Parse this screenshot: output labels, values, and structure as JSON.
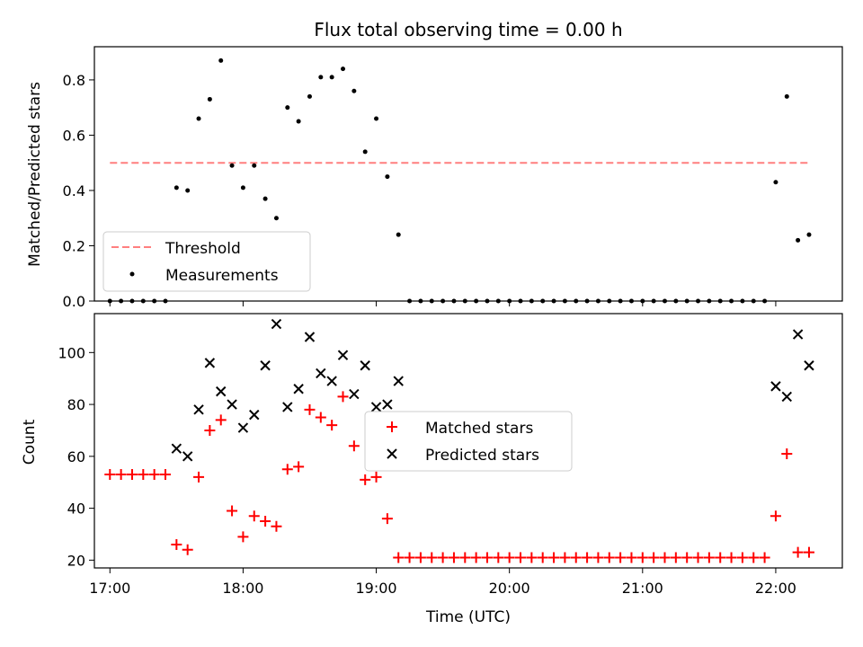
{
  "figure": {
    "title": "Flux total observing time = 0.00 h",
    "xlabel": "Time (UTC)"
  },
  "colors": {
    "threshold": "#ff7f7f",
    "measurements": "#000000",
    "matched": "#ff0000",
    "predicted": "#000000"
  },
  "chart_data": [
    {
      "type": "scatter",
      "title": "Flux total observing time = 0.00 h",
      "xlabel": "",
      "ylabel": "Matched/Predicted stars",
      "xlim": [
        "16:53",
        "22:30"
      ],
      "ylim": [
        0,
        0.92
      ],
      "xticks": [
        "17:00",
        "18:00",
        "19:00",
        "20:00",
        "21:00",
        "22:00"
      ],
      "yticks": [
        0.0,
        0.2,
        0.4,
        0.6,
        0.8
      ],
      "ytick_labels": [
        "0.0",
        "0.2",
        "0.4",
        "0.6",
        "0.8"
      ],
      "legend": {
        "placement": "lower-left",
        "entries": [
          "Threshold",
          "Measurements"
        ]
      },
      "threshold": {
        "name": "Threshold",
        "value": 0.5,
        "x": [
          "17:00",
          "22:15"
        ]
      },
      "series": [
        {
          "name": "Measurements",
          "marker": "dot",
          "points": [
            [
              "17:00",
              0
            ],
            [
              "17:05",
              0
            ],
            [
              "17:10",
              0
            ],
            [
              "17:15",
              0
            ],
            [
              "17:20",
              0
            ],
            [
              "17:25",
              0
            ],
            [
              "17:30",
              0.41
            ],
            [
              "17:35",
              0.4
            ],
            [
              "17:40",
              0.66
            ],
            [
              "17:45",
              0.73
            ],
            [
              "17:50",
              0.87
            ],
            [
              "17:55",
              0.49
            ],
            [
              "18:00",
              0.41
            ],
            [
              "18:05",
              0.49
            ],
            [
              "18:10",
              0.37
            ],
            [
              "18:15",
              0.3
            ],
            [
              "18:20",
              0.7
            ],
            [
              "18:25",
              0.65
            ],
            [
              "18:30",
              0.74
            ],
            [
              "18:35",
              0.81
            ],
            [
              "18:40",
              0.81
            ],
            [
              "18:45",
              0.84
            ],
            [
              "18:50",
              0.76
            ],
            [
              "18:55",
              0.54
            ],
            [
              "19:00",
              0.66
            ],
            [
              "19:05",
              0.45
            ],
            [
              "19:10",
              0.24
            ],
            [
              "19:15",
              0
            ],
            [
              "19:20",
              0
            ],
            [
              "19:25",
              0
            ],
            [
              "19:30",
              0
            ],
            [
              "19:35",
              0
            ],
            [
              "19:40",
              0
            ],
            [
              "19:45",
              0
            ],
            [
              "19:50",
              0
            ],
            [
              "19:55",
              0
            ],
            [
              "20:00",
              0
            ],
            [
              "20:05",
              0
            ],
            [
              "20:10",
              0
            ],
            [
              "20:15",
              0
            ],
            [
              "20:20",
              0
            ],
            [
              "20:25",
              0
            ],
            [
              "20:30",
              0
            ],
            [
              "20:35",
              0
            ],
            [
              "20:40",
              0
            ],
            [
              "20:45",
              0
            ],
            [
              "20:50",
              0
            ],
            [
              "20:55",
              0
            ],
            [
              "21:00",
              0
            ],
            [
              "21:05",
              0
            ],
            [
              "21:10",
              0
            ],
            [
              "21:15",
              0
            ],
            [
              "21:20",
              0
            ],
            [
              "21:25",
              0
            ],
            [
              "21:30",
              0
            ],
            [
              "21:35",
              0
            ],
            [
              "21:40",
              0
            ],
            [
              "21:45",
              0
            ],
            [
              "21:50",
              0
            ],
            [
              "21:55",
              0
            ],
            [
              "22:00",
              0.43
            ],
            [
              "22:05",
              0.74
            ],
            [
              "22:10",
              0.22
            ],
            [
              "22:15",
              0.24
            ]
          ]
        }
      ]
    },
    {
      "type": "scatter",
      "title": "",
      "xlabel": "Time (UTC)",
      "ylabel": "Count",
      "xlim": [
        "16:53",
        "22:30"
      ],
      "ylim": [
        17,
        115
      ],
      "xticks": [
        "17:00",
        "18:00",
        "19:00",
        "20:00",
        "21:00",
        "22:00"
      ],
      "yticks": [
        20,
        40,
        60,
        80,
        100
      ],
      "ytick_labels": [
        "20",
        "40",
        "60",
        "80",
        "100"
      ],
      "legend": {
        "placement": "center",
        "entries": [
          "Matched stars",
          "Predicted stars"
        ]
      },
      "series": [
        {
          "name": "Matched stars",
          "marker": "plus",
          "points": [
            [
              "17:00",
              53
            ],
            [
              "17:05",
              53
            ],
            [
              "17:10",
              53
            ],
            [
              "17:15",
              53
            ],
            [
              "17:20",
              53
            ],
            [
              "17:25",
              53
            ],
            [
              "17:30",
              26
            ],
            [
              "17:35",
              24
            ],
            [
              "17:40",
              52
            ],
            [
              "17:45",
              70
            ],
            [
              "17:50",
              74
            ],
            [
              "17:55",
              39
            ],
            [
              "18:00",
              29
            ],
            [
              "18:05",
              37
            ],
            [
              "18:10",
              35
            ],
            [
              "18:15",
              33
            ],
            [
              "18:20",
              55
            ],
            [
              "18:25",
              56
            ],
            [
              "18:30",
              78
            ],
            [
              "18:35",
              75
            ],
            [
              "18:40",
              72
            ],
            [
              "18:45",
              83
            ],
            [
              "18:50",
              64
            ],
            [
              "18:55",
              51
            ],
            [
              "19:00",
              52
            ],
            [
              "19:05",
              36
            ],
            [
              "19:10",
              21
            ],
            [
              "19:15",
              21
            ],
            [
              "19:20",
              21
            ],
            [
              "19:25",
              21
            ],
            [
              "19:30",
              21
            ],
            [
              "19:35",
              21
            ],
            [
              "19:40",
              21
            ],
            [
              "19:45",
              21
            ],
            [
              "19:50",
              21
            ],
            [
              "19:55",
              21
            ],
            [
              "20:00",
              21
            ],
            [
              "20:05",
              21
            ],
            [
              "20:10",
              21
            ],
            [
              "20:15",
              21
            ],
            [
              "20:20",
              21
            ],
            [
              "20:25",
              21
            ],
            [
              "20:30",
              21
            ],
            [
              "20:35",
              21
            ],
            [
              "20:40",
              21
            ],
            [
              "20:45",
              21
            ],
            [
              "20:50",
              21
            ],
            [
              "20:55",
              21
            ],
            [
              "21:00",
              21
            ],
            [
              "21:05",
              21
            ],
            [
              "21:10",
              21
            ],
            [
              "21:15",
              21
            ],
            [
              "21:20",
              21
            ],
            [
              "21:25",
              21
            ],
            [
              "21:30",
              21
            ],
            [
              "21:35",
              21
            ],
            [
              "21:40",
              21
            ],
            [
              "21:45",
              21
            ],
            [
              "21:50",
              21
            ],
            [
              "21:55",
              21
            ],
            [
              "22:00",
              37
            ],
            [
              "22:05",
              61
            ],
            [
              "22:10",
              23
            ],
            [
              "22:15",
              23
            ]
          ]
        },
        {
          "name": "Predicted stars",
          "marker": "x",
          "points": [
            [
              "17:30",
              63
            ],
            [
              "17:35",
              60
            ],
            [
              "17:40",
              78
            ],
            [
              "17:45",
              96
            ],
            [
              "17:50",
              85
            ],
            [
              "17:55",
              80
            ],
            [
              "18:00",
              71
            ],
            [
              "18:05",
              76
            ],
            [
              "18:10",
              95
            ],
            [
              "18:15",
              111
            ],
            [
              "18:20",
              79
            ],
            [
              "18:25",
              86
            ],
            [
              "18:30",
              106
            ],
            [
              "18:35",
              92
            ],
            [
              "18:40",
              89
            ],
            [
              "18:45",
              99
            ],
            [
              "18:50",
              84
            ],
            [
              "18:55",
              95
            ],
            [
              "19:00",
              79
            ],
            [
              "19:05",
              80
            ],
            [
              "19:10",
              89
            ],
            [
              "22:00",
              87
            ],
            [
              "22:05",
              83
            ],
            [
              "22:10",
              107
            ],
            [
              "22:15",
              95
            ]
          ]
        }
      ]
    }
  ]
}
